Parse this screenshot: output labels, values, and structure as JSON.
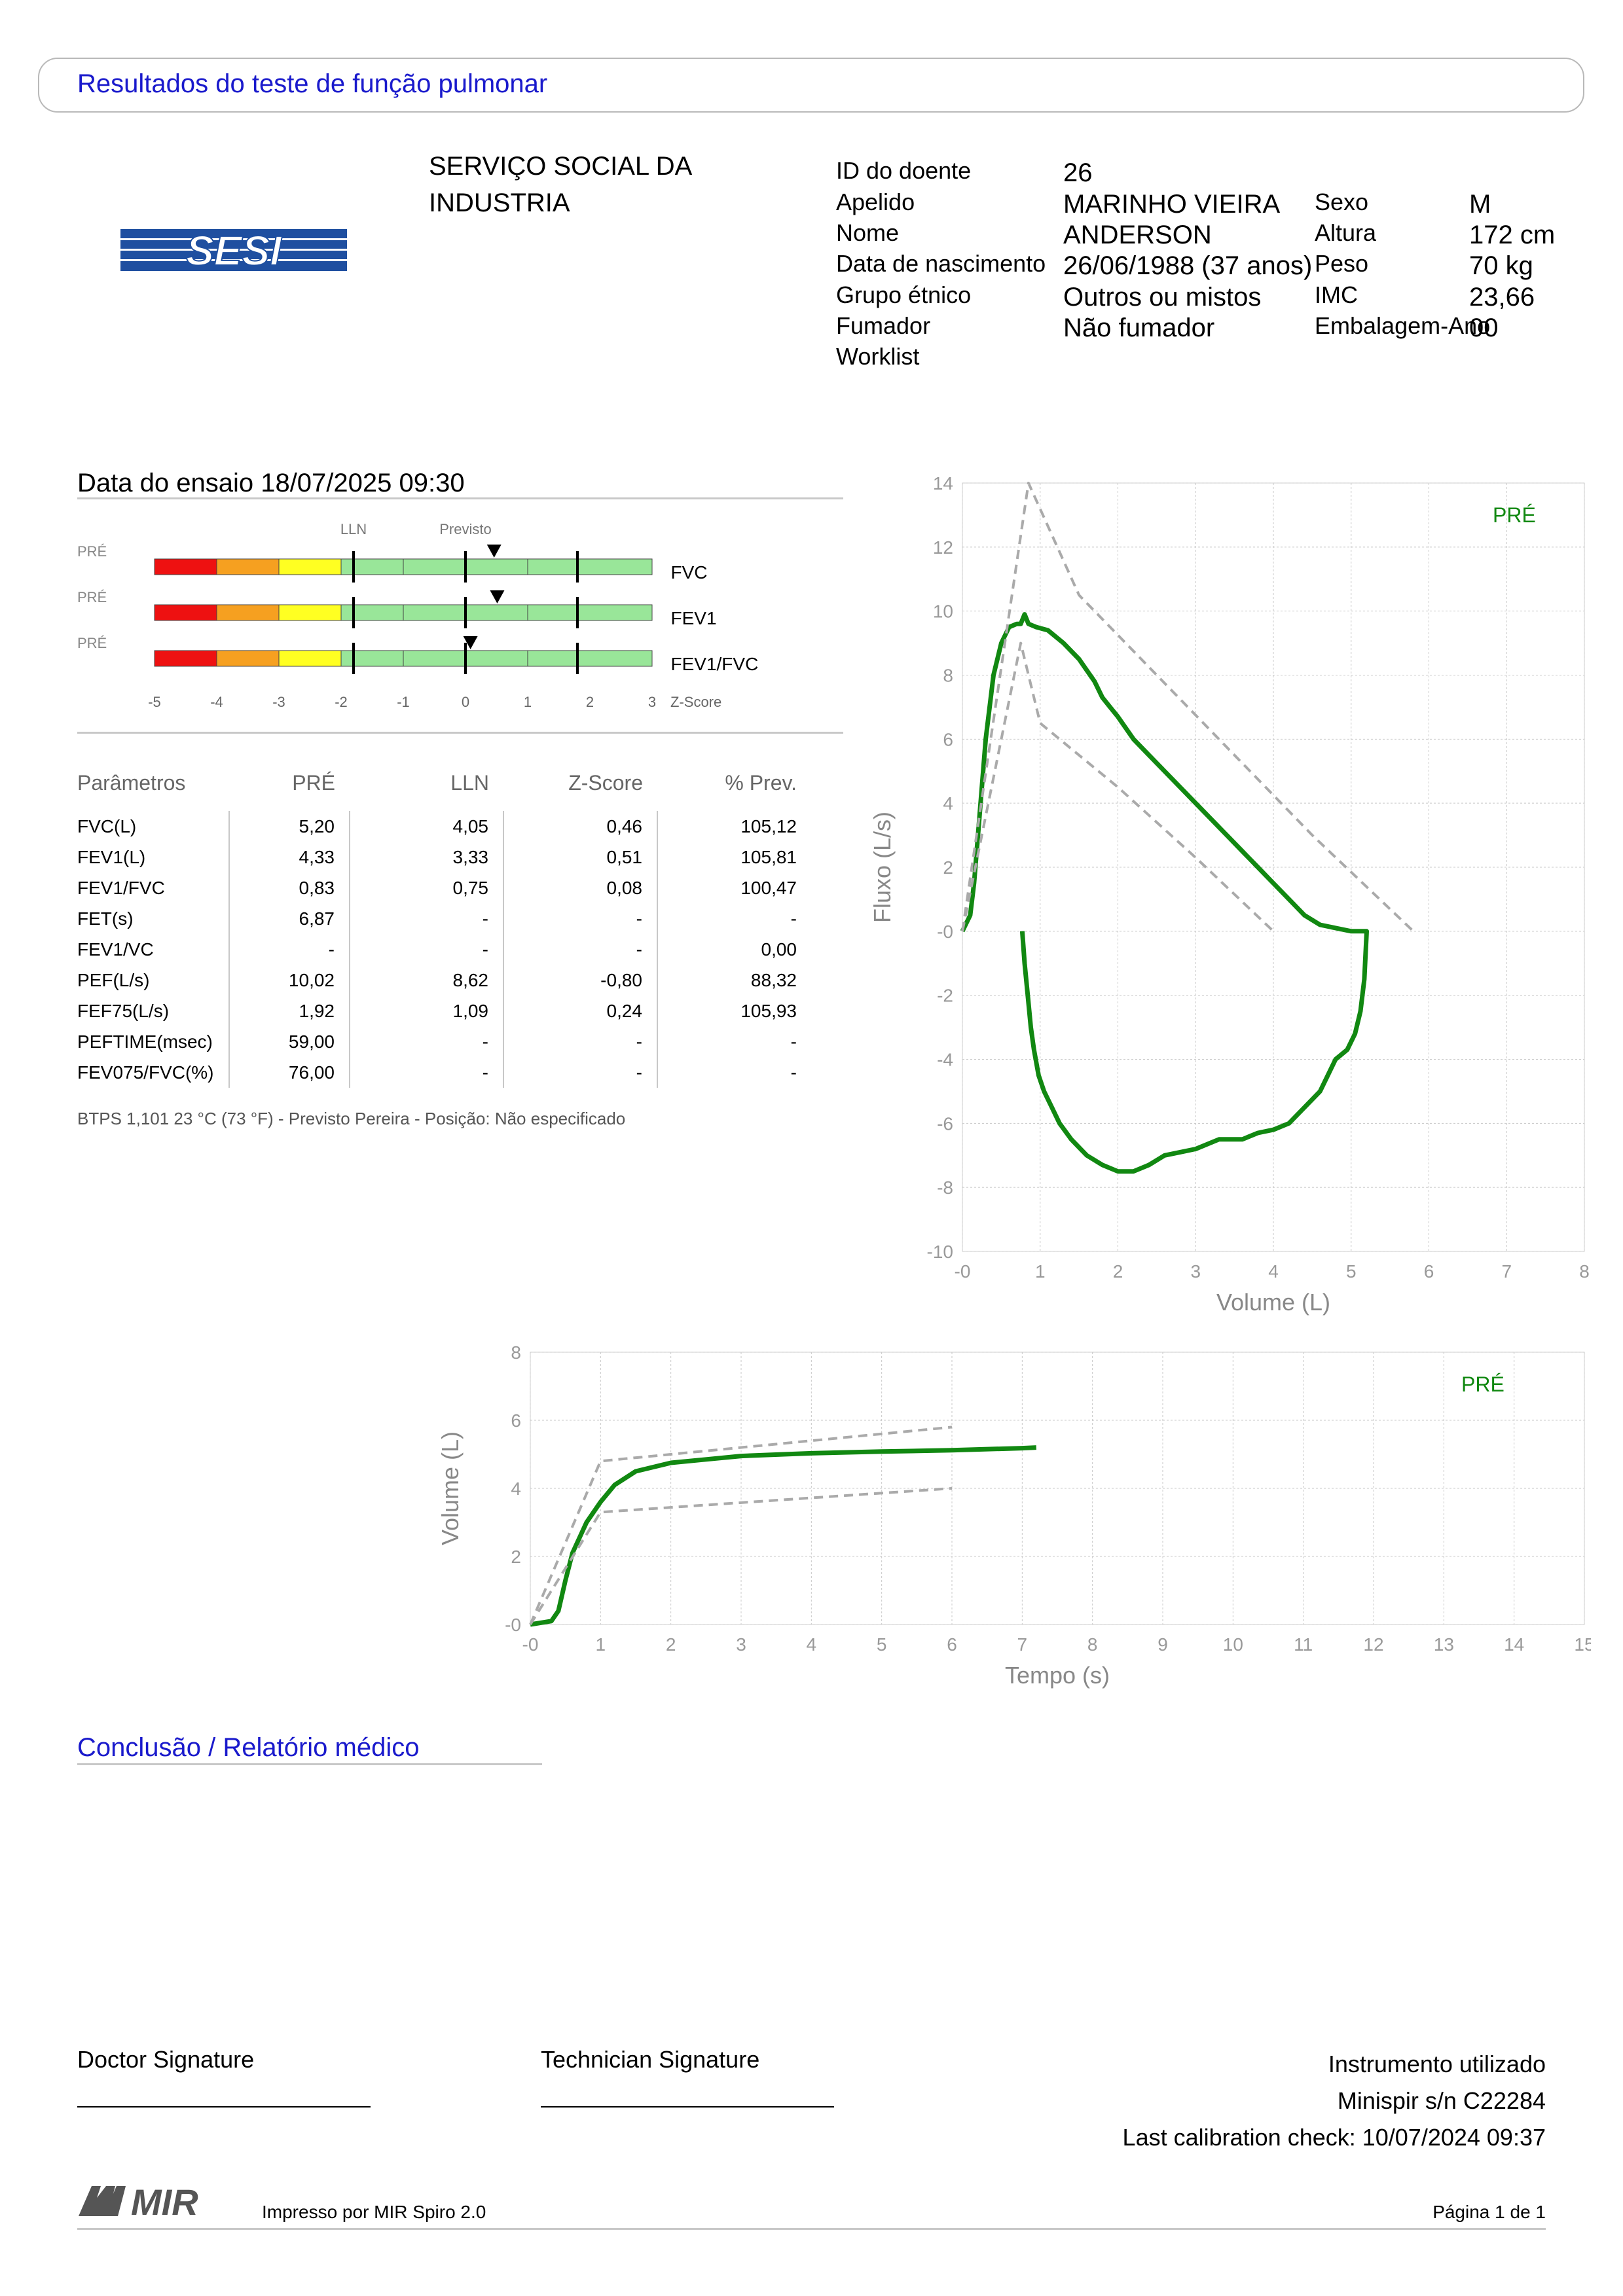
{
  "header": {
    "title": "Resultados do teste de função pulmonar"
  },
  "organization": {
    "logo_text": "SESI",
    "name_line1": "SERVIÇO SOCIAL DA",
    "name_line2": "INDUSTRIA"
  },
  "patient": {
    "labels": {
      "id": "ID do doente",
      "surname": "Apelido",
      "name": "Nome",
      "dob": "Data de nascimento",
      "ethnic": "Grupo étnico",
      "smoker": "Fumador",
      "worklist": "Worklist",
      "sex": "Sexo",
      "height": "Altura",
      "weight": "Peso",
      "bmi": "IMC",
      "pack": "Embalagem-Ano"
    },
    "values": {
      "id": "26",
      "surname": "MARINHO VIEIRA",
      "name": "ANDERSON",
      "dob": "26/06/1988 (37 anos)",
      "ethnic": "Outros ou mistos",
      "smoker": "Não fumador",
      "sex": "M",
      "height": "172 cm",
      "weight": "70 kg",
      "bmi": "23,66",
      "pack": "00"
    }
  },
  "test": {
    "date_label": "Data do ensaio 18/07/2025 09:30"
  },
  "zscore": {
    "lln_label": "LLN",
    "pred_label": "Previsto",
    "axis_label": "Z-Score",
    "ticks": [
      "-5",
      "-4",
      "-3",
      "-2",
      "-1",
      "0",
      "1",
      "2",
      "3"
    ],
    "rows": [
      {
        "phase": "PRÉ",
        "name": "FVC",
        "z": 0.46
      },
      {
        "phase": "PRÉ",
        "name": "FEV1",
        "z": 0.51
      },
      {
        "phase": "PRÉ",
        "name": "FEV1/FVC",
        "z": 0.08
      }
    ]
  },
  "params": {
    "headers": [
      "Parâmetros",
      "PRÉ",
      "LLN",
      "Z-Score",
      "% Prev."
    ],
    "rows": [
      [
        "FVC(L)",
        "5,20",
        "4,05",
        "0,46",
        "105,12"
      ],
      [
        "FEV1(L)",
        "4,33",
        "3,33",
        "0,51",
        "105,81"
      ],
      [
        "FEV1/FVC",
        "0,83",
        "0,75",
        "0,08",
        "100,47"
      ],
      [
        "FET(s)",
        "6,87",
        "-",
        "-",
        "-"
      ],
      [
        "FEV1/VC",
        "-",
        "-",
        "-",
        "0,00"
      ],
      [
        "PEF(L/s)",
        "10,02",
        "8,62",
        "-0,80",
        "88,32"
      ],
      [
        "FEF75(L/s)",
        "1,92",
        "1,09",
        "0,24",
        "105,93"
      ],
      [
        "PEFTIME(msec)",
        "59,00",
        "-",
        "-",
        "-"
      ],
      [
        "FEV075/FVC(%)",
        "76,00",
        "-",
        "-",
        "-"
      ]
    ],
    "footnote": "BTPS 1,101 23 °C (73 °F) - Previsto Pereira - Posição: Não especificado"
  },
  "chart_data": [
    {
      "type": "line",
      "title": "",
      "xlabel": "Volume (L)",
      "ylabel": "Fluxo (L/s)",
      "xlim": [
        0,
        8
      ],
      "ylim": [
        -10,
        14
      ],
      "xticks": [
        "-0",
        "1",
        "2",
        "3",
        "4",
        "5",
        "6",
        "7",
        "8"
      ],
      "yticks": [
        "-10",
        "-8",
        "-6",
        "-4",
        "-2",
        "-0",
        "2",
        "4",
        "6",
        "8",
        "10",
        "12",
        "14"
      ],
      "grid": true,
      "legend": "PRÉ",
      "series": [
        {
          "name": "PRÉ",
          "color": "#118811",
          "x": [
            0.0,
            0.1,
            0.15,
            0.2,
            0.3,
            0.4,
            0.5,
            0.6,
            0.7,
            0.75,
            0.8,
            0.85,
            0.95,
            1.1,
            1.3,
            1.5,
            1.7,
            1.8,
            1.9,
            2.0,
            2.2,
            2.4,
            2.6,
            2.8,
            3.0,
            3.2,
            3.4,
            3.6,
            3.8,
            4.0,
            4.2,
            4.4,
            4.6,
            4.8,
            5.0,
            5.15,
            5.2,
            5.17,
            5.12,
            5.05,
            4.95,
            4.8,
            4.6,
            4.4,
            4.2,
            4.0,
            3.8,
            3.6,
            3.3,
            3.0,
            2.8,
            2.6,
            2.4,
            2.2,
            2.0,
            1.8,
            1.6,
            1.4,
            1.25,
            1.15,
            1.05,
            0.98,
            0.92,
            0.88,
            0.84,
            0.8,
            0.77
          ],
          "y": [
            0.0,
            0.5,
            1.5,
            3.0,
            6.0,
            8.0,
            9.0,
            9.5,
            9.6,
            9.6,
            9.9,
            9.6,
            9.5,
            9.4,
            9.0,
            8.5,
            7.8,
            7.3,
            7.0,
            6.7,
            6.0,
            5.5,
            5.0,
            4.5,
            4.0,
            3.5,
            3.0,
            2.5,
            2.0,
            1.5,
            1.0,
            0.5,
            0.2,
            0.1,
            0.0,
            0.0,
            0.0,
            -1.5,
            -2.5,
            -3.2,
            -3.7,
            -4.0,
            -5.0,
            -5.5,
            -6.0,
            -6.2,
            -6.3,
            -6.5,
            -6.5,
            -6.8,
            -6.9,
            -7.0,
            -7.3,
            -7.5,
            -7.5,
            -7.3,
            -7.0,
            -6.5,
            -6.0,
            -5.5,
            -5.0,
            -4.5,
            -3.7,
            -3.0,
            -2.0,
            -1.0,
            0.0
          ]
        },
        {
          "name": "predicted-upper",
          "color": "#aaaaaa",
          "dashed": true,
          "x": [
            0.0,
            0.85,
            1.5,
            2.5,
            3.5,
            4.5,
            5.8
          ],
          "y": [
            0.0,
            14.0,
            10.5,
            8.0,
            5.5,
            3.0,
            0.0
          ]
        },
        {
          "name": "predicted-lower",
          "color": "#aaaaaa",
          "dashed": true,
          "x": [
            0.0,
            0.75,
            1.0,
            2.0,
            3.0,
            4.0
          ],
          "y": [
            0.0,
            9.0,
            6.5,
            4.5,
            2.3,
            0.0
          ]
        }
      ]
    },
    {
      "type": "line",
      "title": "",
      "xlabel": "Tempo (s)",
      "ylabel": "Volume (L)",
      "xlim": [
        0,
        15
      ],
      "ylim": [
        0,
        8
      ],
      "xticks": [
        "-0",
        "1",
        "2",
        "3",
        "4",
        "5",
        "6",
        "7",
        "8",
        "9",
        "10",
        "11",
        "12",
        "13",
        "14",
        "15"
      ],
      "yticks": [
        "-0",
        "2",
        "4",
        "6",
        "8"
      ],
      "grid": true,
      "legend": "PRÉ",
      "series": [
        {
          "name": "PRÉ",
          "color": "#118811",
          "x": [
            0.0,
            0.3,
            0.4,
            0.5,
            0.6,
            0.8,
            1.0,
            1.2,
            1.5,
            2.0,
            2.5,
            3.0,
            4.0,
            5.0,
            6.0,
            7.0,
            7.2
          ],
          "y": [
            0.0,
            0.1,
            0.4,
            1.3,
            2.1,
            3.0,
            3.6,
            4.1,
            4.5,
            4.75,
            4.85,
            4.95,
            5.03,
            5.08,
            5.12,
            5.18,
            5.2
          ]
        },
        {
          "name": "predicted-upper",
          "color": "#aaaaaa",
          "dashed": true,
          "x": [
            0.0,
            1.0,
            6.0
          ],
          "y": [
            0.0,
            4.8,
            5.8
          ]
        },
        {
          "name": "predicted-lower",
          "color": "#aaaaaa",
          "dashed": true,
          "x": [
            0.0,
            1.0,
            6.0
          ],
          "y": [
            0.0,
            3.3,
            4.0
          ]
        }
      ]
    }
  ],
  "conclusion": {
    "title": "Conclusão / Relatório médico"
  },
  "signatures": {
    "doctor": "Doctor Signature",
    "technician": "Technician Signature"
  },
  "instrument": {
    "label": "Instrumento utilizado",
    "device": "Minispir s/n C22284",
    "calibration": "Last calibration check: 10/07/2024 09:37"
  },
  "footer": {
    "logo_text": "MIR",
    "printed_by": "Impresso por MIR Spiro 2.0",
    "page": "Página 1 de 1"
  }
}
